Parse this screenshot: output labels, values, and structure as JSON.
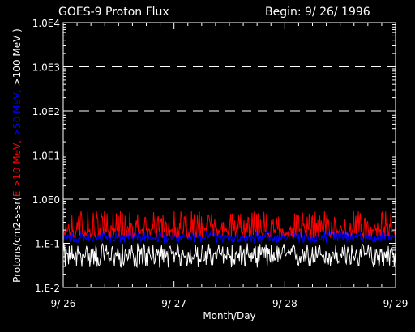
{
  "header": {
    "title": "GOES-9 Proton Flux",
    "begin": "Begin: 9/ 26/ 1996"
  },
  "chart_data": {
    "type": "line",
    "yscale": "log",
    "ylim": [
      0.01,
      10000
    ],
    "ytick_values": [
      0.01,
      0.1,
      1,
      10,
      100,
      1000,
      10000
    ],
    "ytick_labels": [
      "1.E-2",
      "1.E-1",
      "1.0E0",
      "1.0E1",
      "1.0E2",
      "1.0E3",
      "1.0E4"
    ],
    "dashed_gridlines_at": [
      1,
      10,
      100,
      1000
    ],
    "xlim": [
      0,
      3
    ],
    "xtick_values": [
      0,
      1,
      2,
      3
    ],
    "xtick_labels": [
      "9/ 26",
      "9/ 27",
      "9/ 28",
      "9/ 29"
    ],
    "xlabel": "Month/Day",
    "ylabel_parts": [
      {
        "text": "Protons/cm2-s-sr(",
        "color": "#ffffff"
      },
      {
        "text": "E >10 MeV,",
        "color": "#ff0000"
      },
      {
        "text": " >50 MeV,",
        "color": "#0000ff"
      },
      {
        "text": " >100 MeV )",
        "color": "#ffffff"
      }
    ],
    "series": [
      {
        "name": "E >10 MeV",
        "color": "#ff0000",
        "baseline": 0.2,
        "high": 0.55,
        "low": 0.13
      },
      {
        "name": ">50 MeV",
        "color": "#0000ff",
        "baseline": 0.14,
        "high": 0.2,
        "low": 0.1
      },
      {
        "name": ">100 MeV",
        "color": "#ffffff",
        "baseline": 0.055,
        "high": 0.1,
        "low": 0.028
      }
    ]
  }
}
